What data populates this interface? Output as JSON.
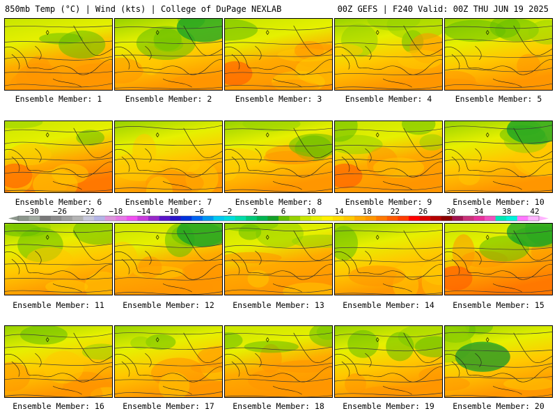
{
  "header": {
    "left": "850mb Temp (°C) | Wind (kts) | College of DuPage NEXLAB",
    "right": "00Z GEFS | F240 Valid: 00Z THU JUN 19 2025"
  },
  "panels": [
    {
      "label": "Ensemble Member: 1"
    },
    {
      "label": "Ensemble Member: 2"
    },
    {
      "label": "Ensemble Member: 3"
    },
    {
      "label": "Ensemble Member: 4"
    },
    {
      "label": "Ensemble Member: 5"
    },
    {
      "label": "Ensemble Member: 6"
    },
    {
      "label": "Ensemble Member: 7"
    },
    {
      "label": "Ensemble Member: 8"
    },
    {
      "label": "Ensemble Member: 9"
    },
    {
      "label": "Ensemble Member: 10"
    },
    {
      "label": "Ensemble Member: 11"
    },
    {
      "label": "Ensemble Member: 12"
    },
    {
      "label": "Ensemble Member: 13"
    },
    {
      "label": "Ensemble Member: 14"
    },
    {
      "label": "Ensemble Member: 15"
    },
    {
      "label": "Ensemble Member: 16"
    },
    {
      "label": "Ensemble Member: 17"
    },
    {
      "label": "Ensemble Member: 18"
    },
    {
      "label": "Ensemble Member: 19"
    },
    {
      "label": "Ensemble Member: 20"
    }
  ],
  "colorbar": {
    "ticks": [
      "−30",
      "−26",
      "−22",
      "−18",
      "−14",
      "−10",
      "−6",
      "−2",
      "2",
      "6",
      "10",
      "14",
      "18",
      "22",
      "26",
      "30",
      "34",
      "38",
      "42"
    ],
    "colors": [
      "#8c968c",
      "#a0aaa0",
      "#787878",
      "#8c8c8c",
      "#a0a0a0",
      "#b4b4b4",
      "#c8c8dc",
      "#b4b4e6",
      "#dc96dc",
      "#e678e6",
      "#f050f0",
      "#c83cdc",
      "#9628c8",
      "#5a14c8",
      "#2814c8",
      "#0032dc",
      "#0064f0",
      "#0096f0",
      "#00c8f0",
      "#00dcdc",
      "#00dcaa",
      "#00c878",
      "#00b450",
      "#14a028",
      "#64be00",
      "#96d200",
      "#c8e600",
      "#e6f000",
      "#fff000",
      "#ffdc00",
      "#ffc800",
      "#ffaa00",
      "#ff9600",
      "#ff7800",
      "#ff5a00",
      "#ff3c00",
      "#ff0000",
      "#dc0000",
      "#b40000",
      "#8c0000",
      "#a01450",
      "#c83278",
      "#e6329b",
      "#f050be",
      "#00e6b4",
      "#00f0dc",
      "#ff78ff",
      "#ffb4ff"
    ]
  }
}
